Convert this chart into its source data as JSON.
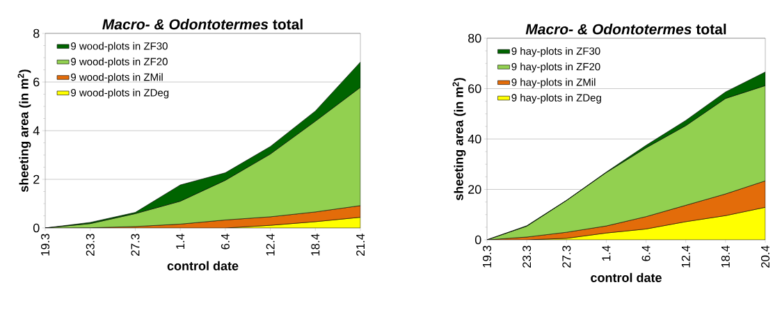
{
  "chart_data": [
    {
      "type": "area",
      "stacked": true,
      "title": "*Macro- & Odontotermes* total",
      "xlabel": "control date",
      "ylabel": "sheeting area (in m$^{2}$)",
      "categories": [
        "19.3",
        "23.3",
        "27.3",
        "1.4",
        "6.4",
        "12.4",
        "18.4",
        "21.4"
      ],
      "series": [
        {
          "name": "9 wood-plots in ZDeg",
          "color": "#ffff00",
          "values": [
            0,
            0,
            0,
            0,
            0,
            0.11,
            0.26,
            0.44
          ]
        },
        {
          "name": "9 wood-plots in ZMil",
          "color": "#e36c0a",
          "values": [
            0,
            0.01,
            0.06,
            0.16,
            0.33,
            0.35,
            0.4,
            0.48
          ]
        },
        {
          "name": "9 wood-plots in ZF20",
          "color": "#92d050",
          "values": [
            0,
            0.17,
            0.53,
            0.94,
            1.63,
            2.58,
            3.73,
            4.86
          ]
        },
        {
          "name": "9 wood-plots in ZF30",
          "color": "#006400",
          "values": [
            0,
            0.05,
            0.05,
            0.67,
            0.31,
            0.31,
            0.42,
            1.04
          ]
        }
      ],
      "ylim": [
        0,
        8
      ],
      "yticks": [
        0,
        2,
        4,
        6,
        8
      ],
      "grid": "y",
      "legend": "top left"
    },
    {
      "type": "area",
      "stacked": true,
      "title": "*Macro- & Odontotermes* total",
      "xlabel": "control date",
      "ylabel": "sheeting area (in m$^{2}$)",
      "categories": [
        "19.3",
        "23.3",
        "27.3",
        "1.4",
        "6.4",
        "12.4",
        "18.4",
        "20.4"
      ],
      "series": [
        {
          "name": "9 hay-plots in ZDeg",
          "color": "#ffff00",
          "values": [
            0,
            0,
            0.6,
            2.7,
            4.3,
            7.2,
            9.6,
            12.9
          ]
        },
        {
          "name": "9 hay-plots in ZMil",
          "color": "#e36c0a",
          "values": [
            0,
            1.1,
            2.4,
            2.8,
            4.9,
            6.5,
            8.6,
            10.5
          ]
        },
        {
          "name": "9 hay-plots in ZF20",
          "color": "#92d050",
          "values": [
            0,
            4.3,
            12.6,
            21.2,
            27.3,
            31.6,
            37.9,
            37.8
          ]
        },
        {
          "name": "9 hay-plots in ZF30",
          "color": "#006400",
          "values": [
            0,
            0.2,
            0.1,
            0.2,
            1.0,
            2.1,
            2.6,
            5.4
          ]
        }
      ],
      "ylim": [
        0,
        80
      ],
      "yticks": [
        0,
        20,
        40,
        60,
        80
      ],
      "grid": "y",
      "legend": "top left"
    }
  ]
}
